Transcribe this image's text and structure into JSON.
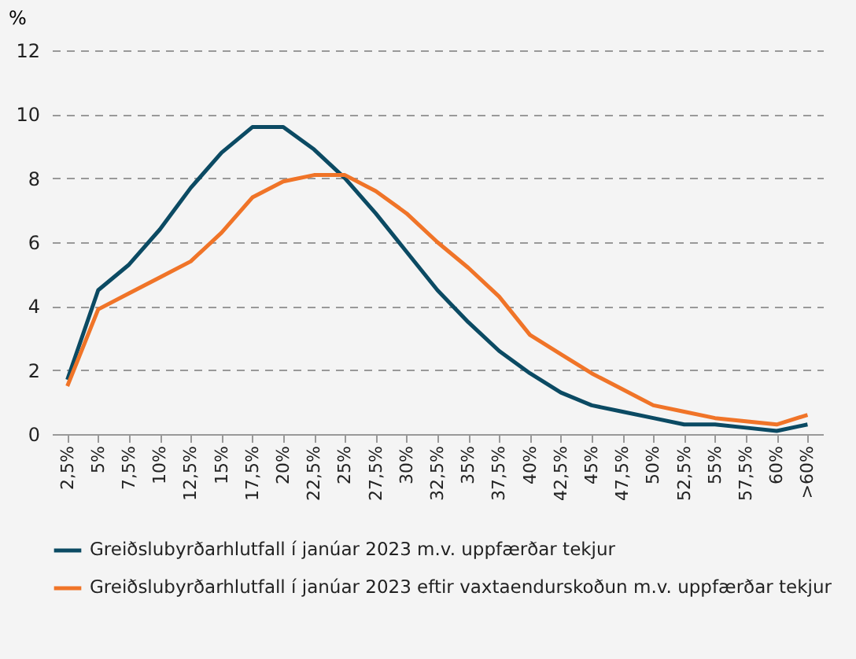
{
  "chart_data": {
    "type": "line",
    "ylabel": "%",
    "categories": [
      "2,5%",
      "5%",
      "7,5%",
      "10%",
      "12,5%",
      "15%",
      "17,5%",
      "20%",
      "22,5%",
      "25%",
      "27,5%",
      "30%",
      "32,5%",
      "35%",
      "37,5%",
      "40%",
      "42,5%",
      "45%",
      "47,5%",
      "50%",
      "52,5%",
      "55%",
      "57,5%",
      "60%",
      ">60%"
    ],
    "series": [
      {
        "name": "Greiðslubyrðarhlutfall í janúar 2023 m.v. uppfærðar tekjur",
        "color": "#0b4a63",
        "values": [
          1.7,
          4.5,
          5.3,
          6.4,
          7.7,
          8.8,
          9.6,
          9.6,
          8.9,
          8.0,
          6.9,
          5.7,
          4.5,
          3.5,
          2.6,
          1.9,
          1.3,
          0.9,
          0.7,
          0.5,
          0.3,
          0.3,
          0.2,
          0.1,
          0.3
        ]
      },
      {
        "name": "Greiðslubyrðarhlutfall í janúar 2023 eftir vaxtaendurskoðun m.v. uppfærðar tekjur",
        "color": "#f07428",
        "values": [
          1.5,
          3.9,
          4.4,
          4.9,
          5.4,
          6.3,
          7.4,
          7.9,
          8.1,
          8.1,
          7.6,
          6.9,
          6.0,
          5.2,
          4.3,
          3.1,
          2.5,
          1.9,
          1.4,
          0.9,
          0.7,
          0.5,
          0.4,
          0.3,
          0.6
        ]
      }
    ],
    "ylim": [
      0,
      12
    ],
    "yticks": [
      0,
      2,
      4,
      6,
      8,
      10,
      12
    ],
    "grid": "y",
    "legend": "bottom",
    "marker": "none",
    "line_style": "solid"
  }
}
